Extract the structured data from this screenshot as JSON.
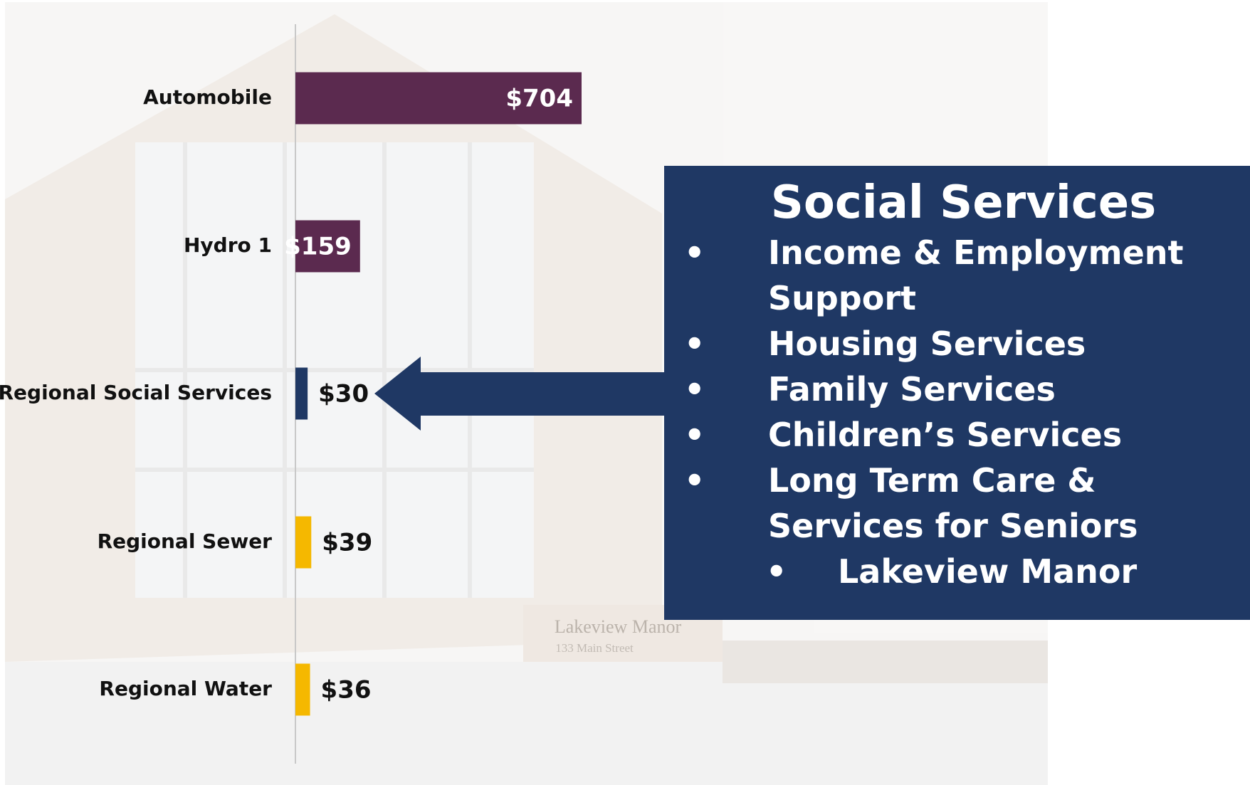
{
  "chart_data": {
    "type": "barh",
    "categories": [
      "Automobile",
      "Hydro 1",
      "Regional Social Services",
      "Regional Sewer",
      "Regional Water"
    ],
    "values": [
      704,
      159,
      30,
      39,
      36
    ],
    "value_labels": [
      "$704",
      "$159",
      "$30",
      "$39",
      "$36"
    ],
    "colors": [
      "#5b2a4f",
      "#5b2a4f",
      "#1f3864",
      "#f5b800",
      "#f5b800"
    ]
  },
  "callout": {
    "title": "Social Services",
    "items": [
      "Income & Employment Support",
      "Housing Services",
      "Family Services",
      "Children’s Services",
      "Long Term Care & Services for Seniors"
    ],
    "subitems": [
      "Lakeview Manor"
    ]
  },
  "background_sign": [
    "Lakeview Manor",
    "133 Main Street"
  ]
}
